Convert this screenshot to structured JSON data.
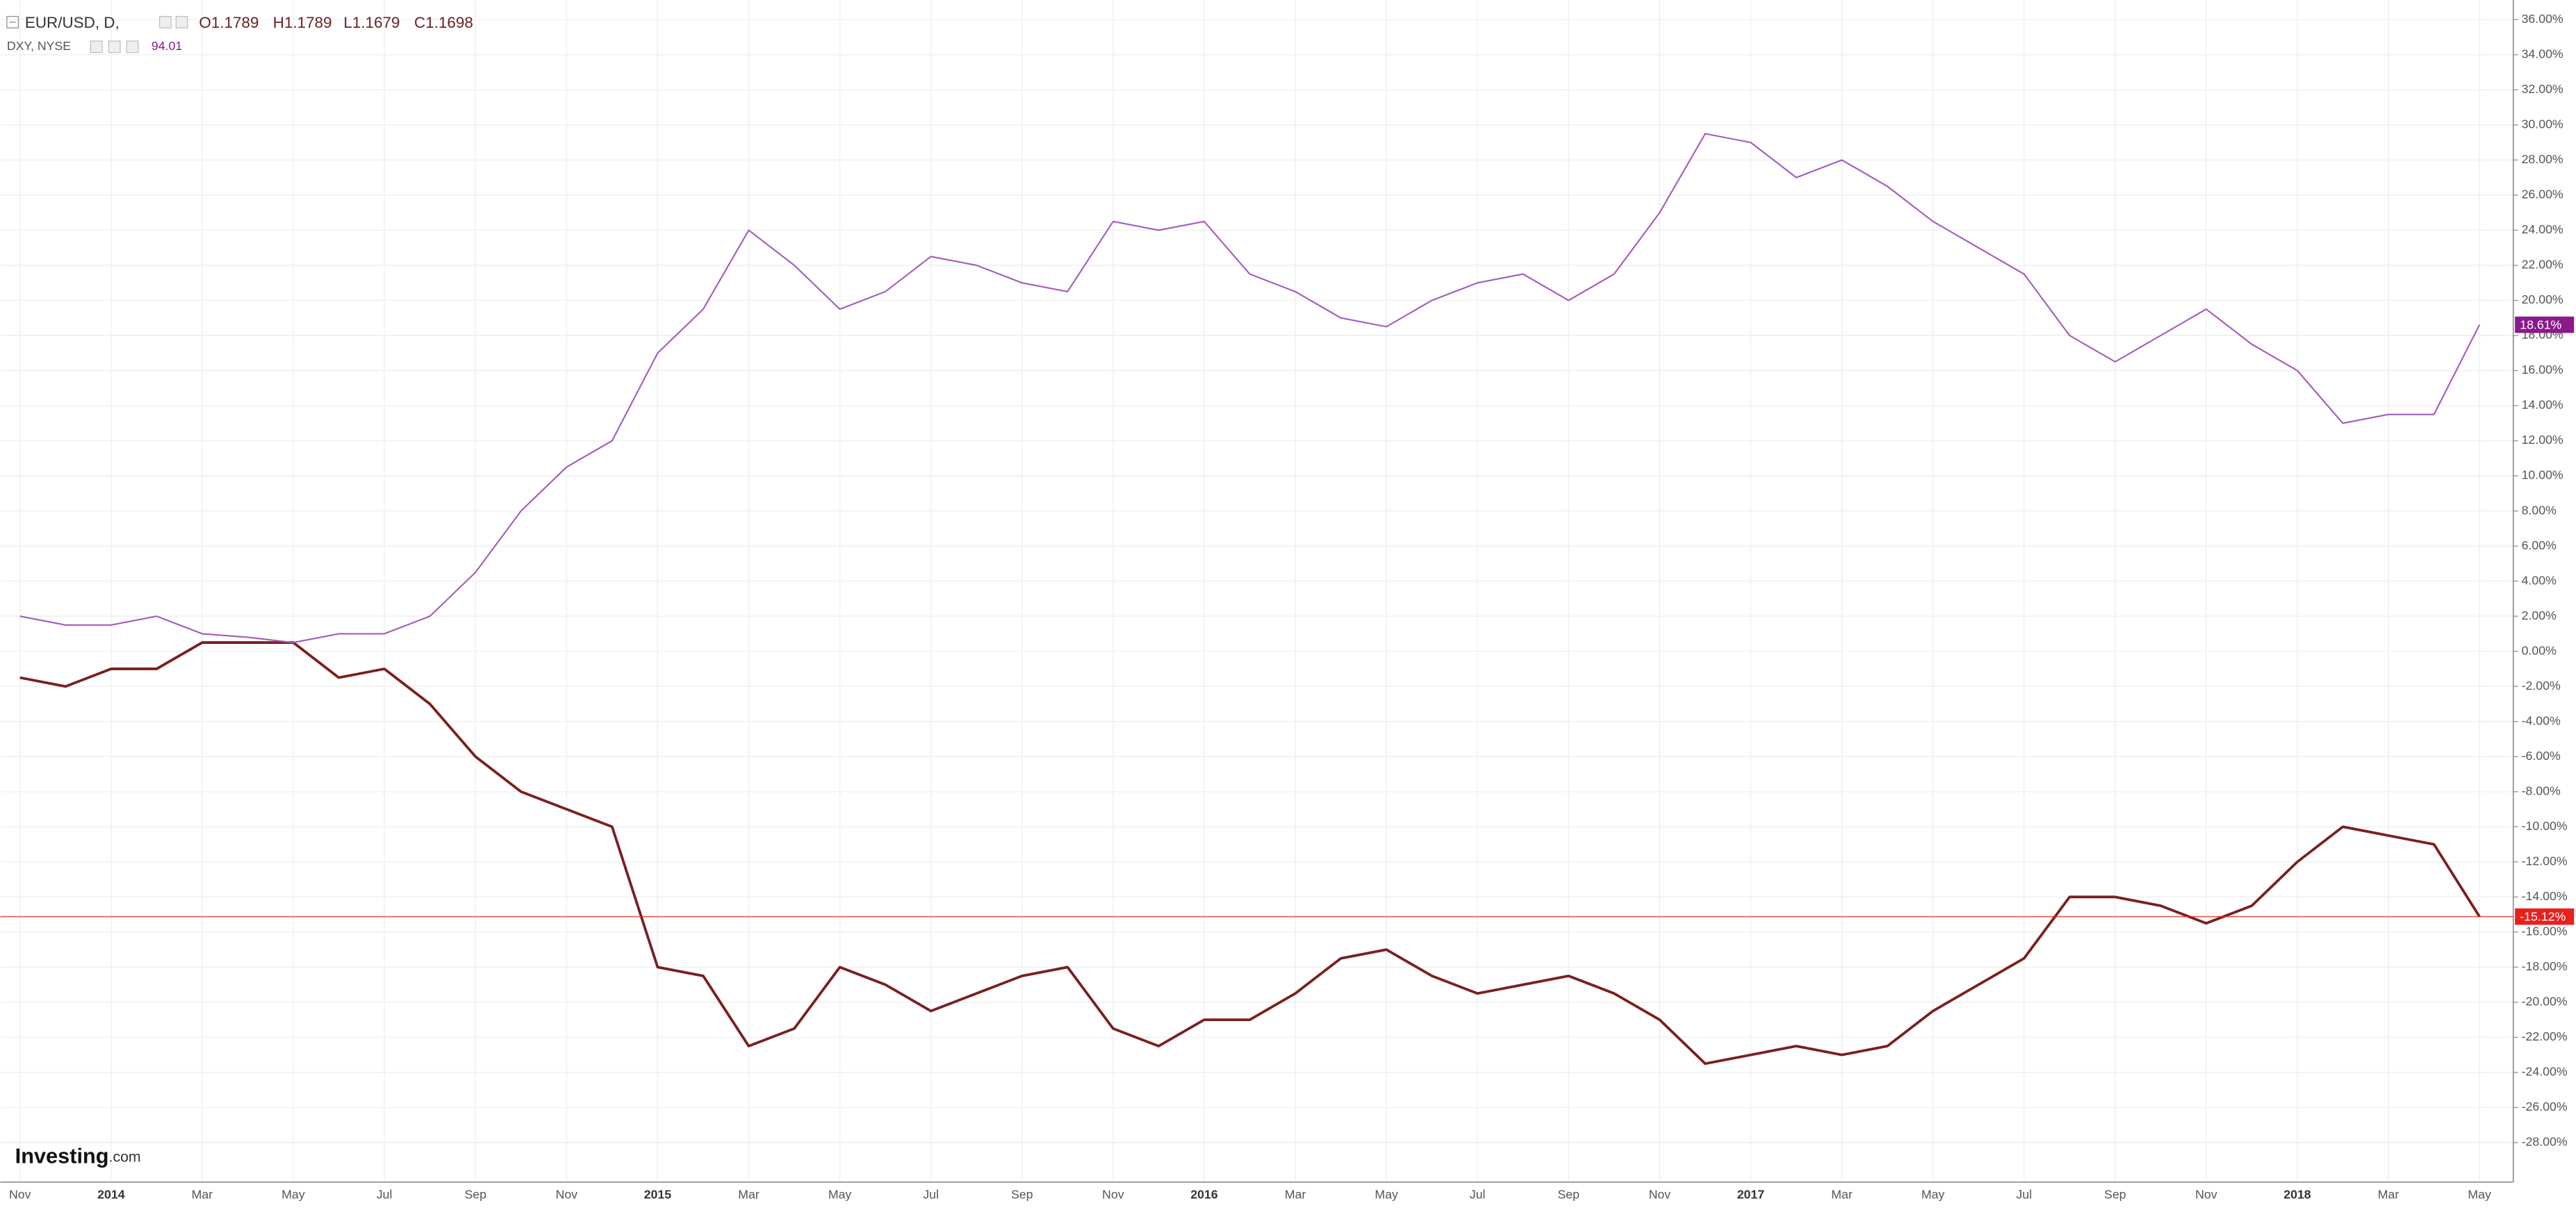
{
  "header": {
    "ohlc": [
      "O1.1789",
      "H1.1789",
      "L1.1679",
      "C1.1698"
    ],
    "secondary_value": "94.01"
  },
  "logo": [
    "Investing",
    ".com"
  ],
  "chart_data": {
    "type": "line",
    "categories": [
      "Nov",
      null,
      "2014",
      null,
      "Mar",
      null,
      "May",
      null,
      "Jul",
      null,
      "Sep",
      null,
      "Nov",
      null,
      "2015",
      null,
      "Mar",
      null,
      "May",
      null,
      "Jul",
      null,
      "Sep",
      null,
      "Nov",
      null,
      "2016",
      null,
      "Mar",
      null,
      "May",
      null,
      "Jul",
      null,
      "Sep",
      null,
      "Nov",
      null,
      "2017",
      null,
      "Mar",
      null,
      "May",
      null,
      "Jul",
      null,
      "Sep",
      null,
      "Nov",
      null,
      "2018",
      null,
      "Mar",
      null,
      "May"
    ],
    "series": [
      {
        "name": "EUR/USD, D,",
        "color": "#7a1f1f",
        "values": [
          -1.5,
          -2,
          -1,
          -1,
          0.5,
          0.5,
          0.5,
          -1.5,
          -1,
          -3,
          -6,
          -8,
          -9,
          -10,
          -18,
          -18.5,
          -22.5,
          -21.5,
          -18,
          -19,
          -20.5,
          -19.5,
          -18.5,
          -18,
          -21.5,
          -22.5,
          -21,
          -21,
          -19.5,
          -17.5,
          -17,
          -18.5,
          -19.5,
          -19,
          -18.5,
          -19.5,
          -21,
          -23.5,
          -23,
          -22.5,
          -23,
          -22.5,
          -20.5,
          -19,
          -17.5,
          -14,
          -14,
          -14.5,
          -15.5,
          -14.5,
          -12,
          -10,
          -10.5,
          -11,
          -15.12
        ],
        "value_labels": [
          null,
          null,
          null,
          null,
          null,
          null,
          null,
          null,
          null,
          null,
          null,
          null,
          null,
          null,
          null,
          null,
          null,
          null,
          null,
          null,
          null,
          null,
          null,
          null,
          null,
          null,
          null,
          null,
          null,
          null,
          null,
          null,
          null,
          null,
          null,
          null,
          null,
          null,
          null,
          null,
          null,
          null,
          null,
          null,
          null,
          null,
          null,
          null,
          null,
          null,
          null,
          null,
          null,
          null,
          "-15.12%"
        ],
        "label_color": "#e8201e"
      },
      {
        "name": "DXY, NYSE",
        "color": "#a25cbf",
        "values": [
          2,
          1.5,
          1.5,
          2,
          1,
          0.8,
          0.5,
          1,
          1,
          2,
          4.5,
          8,
          10.5,
          12,
          17,
          19.5,
          24,
          22,
          19.5,
          20.5,
          22.5,
          22,
          21,
          20.5,
          24.5,
          24,
          24.5,
          21.5,
          20.5,
          19,
          18.5,
          20,
          21,
          21.5,
          20,
          21.5,
          25,
          29.5,
          29,
          27,
          28,
          26.5,
          24.5,
          23,
          21.5,
          18,
          16.5,
          18,
          19.5,
          17.5,
          16,
          13,
          13.5,
          13.5,
          18.61
        ],
        "value_labels": [
          null,
          null,
          null,
          null,
          null,
          null,
          null,
          null,
          null,
          null,
          null,
          null,
          null,
          null,
          null,
          null,
          null,
          null,
          null,
          null,
          null,
          null,
          null,
          null,
          null,
          null,
          null,
          null,
          null,
          null,
          null,
          null,
          null,
          null,
          null,
          null,
          null,
          null,
          null,
          null,
          null,
          null,
          null,
          null,
          null,
          null,
          null,
          null,
          null,
          null,
          null,
          null,
          null,
          null,
          "18.61%"
        ],
        "label_color": "#8b1a8b"
      }
    ],
    "ylim": [
      -30.25,
      37.12
    ],
    "yticks": [
      {
        "value": -28,
        "label": "-28.00%"
      },
      {
        "value": -26,
        "label": "-26.00%"
      },
      {
        "value": -24,
        "label": "-24.00%"
      },
      {
        "value": -22,
        "label": "-22.00%"
      },
      {
        "value": -20,
        "label": "-20.00%"
      },
      {
        "value": -18,
        "label": "-18.00%"
      },
      {
        "value": -16,
        "label": "-16.00%"
      },
      {
        "value": -14,
        "label": "-14.00%"
      },
      {
        "value": -12,
        "label": "-12.00%"
      },
      {
        "value": -10,
        "label": "-10.00%"
      },
      {
        "value": -8,
        "label": "-8.00%"
      },
      {
        "value": -6,
        "label": "-6.00%"
      },
      {
        "value": -4,
        "label": "-4.00%"
      },
      {
        "value": -2,
        "label": "-2.00%"
      },
      {
        "value": 0,
        "label": "0.00%"
      },
      {
        "value": 2,
        "label": "2.00%"
      },
      {
        "value": 4,
        "label": "4.00%"
      },
      {
        "value": 6,
        "label": "6.00%"
      },
      {
        "value": 8,
        "label": "8.00%"
      },
      {
        "value": 10,
        "label": "10.00%"
      },
      {
        "value": 12,
        "label": "12.00%"
      },
      {
        "value": 14,
        "label": "14.00%"
      },
      {
        "value": 16,
        "label": "16.00%"
      },
      {
        "value": 18,
        "label": "18.00%"
      },
      {
        "value": 20,
        "label": "20.00%"
      },
      {
        "value": 22,
        "label": "22.00%"
      },
      {
        "value": 24,
        "label": "24.00%"
      },
      {
        "value": 26,
        "label": "26.00%"
      },
      {
        "value": 28,
        "label": "28.00%"
      },
      {
        "value": 30,
        "label": "30.00%"
      },
      {
        "value": 32,
        "label": "32.00%"
      },
      {
        "value": 34,
        "label": "34.00%"
      },
      {
        "value": 36,
        "label": "36.00%"
      }
    ],
    "grid": true
  }
}
